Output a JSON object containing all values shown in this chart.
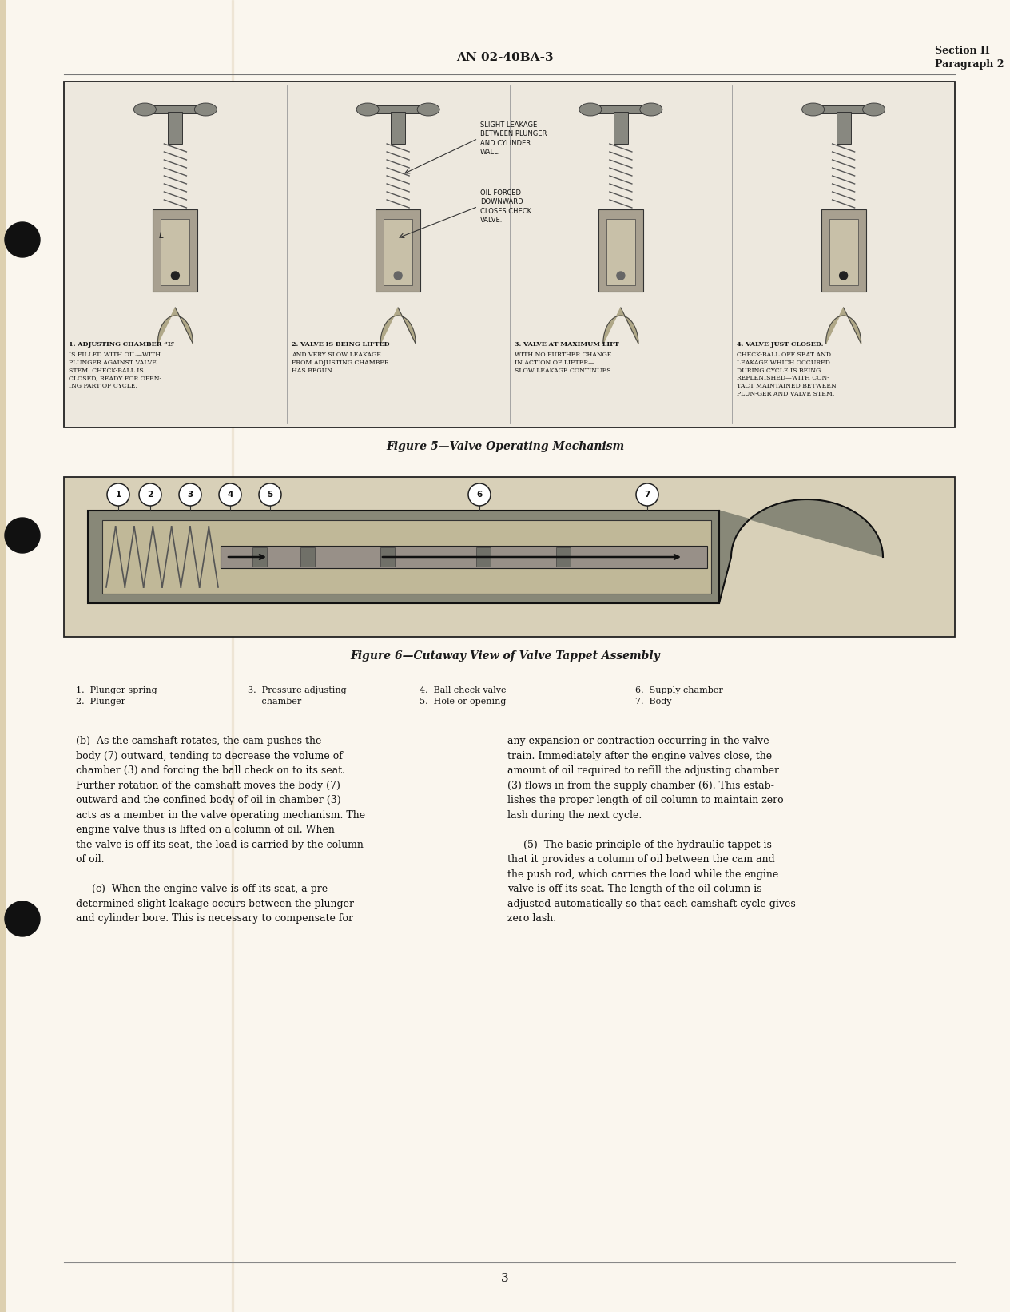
{
  "page_bg_color": "#FAF6EE",
  "text_color": "#1a1a1a",
  "header_left": "AN 02-40BA-3",
  "header_right_line1": "Section II",
  "header_right_line2": "Paragraph 2",
  "figure5_caption": "Figure 5—Valve Operating Mechanism",
  "figure6_caption": "Figure 6—Cutaway View of Valve Tappet Assembly",
  "fig5_label1_title": "1. ADJUSTING CHAMBER “L”",
  "fig5_label1_body": "IS FILLED WITH OIL—WITH\nPLUNGER AGAINST VALVE\nSTEM. CHECK-BALL IS\nCLOSED, READY FOR OPEN-\nING PART OF CYCLE.",
  "fig5_label2_title": "2. VALVE IS BEING LIFTED",
  "fig5_label2_body": "AND VERY SLOW LEAKAGE\nFROM ADJUSTING CHAMBER\nHAS BEGUN.",
  "fig5_label3_title": "3. VALVE AT MAXIMUM LIFT",
  "fig5_label3_body": "WITH NO FURTHER CHANGE\nIN ACTION OF LIFTER—\nSLOW LEAKAGE CONTINUES.",
  "fig5_label4_title": "4. VALVE JUST CLOSED.",
  "fig5_label4_body": "CHECK-BALL OFF SEAT AND\nLEAKAGE WHICH OCCURED\nDURING CYCLE IS BEING\nREPLENISHED—WITH CON-\nTACT MAINTAINED BETWEEN\nPLUN-GER AND VALVE STEM.",
  "fig5_callout1": "SLIGHT LEAKAGE\nBETWEEN PLUNGER\nAND CYLINDER\nWALL.",
  "fig5_callout2": "OIL FORCED\nDOWNWARD\nCLOSES CHECK\nVALVE.",
  "page_number": "3",
  "body_col1_b": "(b)  As the camshaft rotates, the cam pushes the\nbody (7) outward, tending to decrease the volume of\nchamber (3) and forcing the ball check on to its seat.\nFurther rotation of the camshaft moves the body (7)\noutward and the confined body of oil in chamber (3)\nacts as a member in the valve operating mechanism. The\nengine valve thus is lifted on a column of oil. When\nthe valve is off its seat, the load is carried by the column\nof oil.",
  "body_col1_c": "     (c)  When the engine valve is off its seat, a pre-\ndetermined slight leakage occurs between the plunger\nand cylinder bore. This is necessary to compensate for",
  "body_col2": "any expansion or contraction occurring in the valve\ntrain. Immediately after the engine valves close, the\namount of oil required to refill the adjusting chamber\n(3) flows in from the supply chamber (6). This estab-\nlishes the proper length of oil column to maintain zero\nlash during the next cycle.\n\n     (5)  The basic principle of the hydraulic tappet is\nthat it provides a column of oil between the cam and\nthe push rod, which carries the load while the engine\nvalve is off its seat. The length of the oil column is\nadjusted automatically so that each camshaft cycle gives\nzero lash."
}
